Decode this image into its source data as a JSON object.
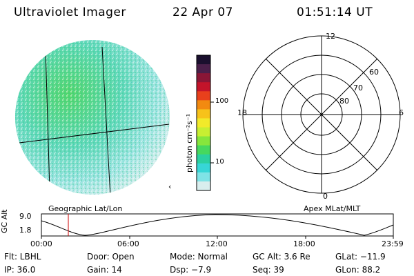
{
  "header": {
    "instrument": "Ultraviolet Imager",
    "date": "22 Apr 07",
    "time": "01:51:14 UT"
  },
  "colorbar": {
    "unit_label": "photon cm⁻²s⁻¹",
    "ticks": [
      "100",
      "10"
    ],
    "colors": [
      "#1a0f2e",
      "#4a1f4a",
      "#8a1636",
      "#c4142a",
      "#e8401c",
      "#f28a10",
      "#f7c21a",
      "#f2ea2a",
      "#c8ef32",
      "#86e63c",
      "#46d85e",
      "#2bd0a0",
      "#37d6d6",
      "#7fe3e6",
      "#d9eeee"
    ]
  },
  "labels": {
    "geo": "Geographic Lat/Lon",
    "apex": "Apex MLat/MLT"
  },
  "polar": {
    "mlt_top": "12",
    "mlt_left": "18",
    "mlt_right": "6",
    "mlt_bottom": "0",
    "lat_60": "60",
    "lat_70": "70",
    "lat_80": "80"
  },
  "altitude_plot": {
    "ylabel": "GC Alt",
    "y_ticks": [
      "9.0",
      "1.8"
    ],
    "x_ticks": [
      "00:00",
      "06:00",
      "12:00",
      "18:00",
      "23:59"
    ],
    "current_time_color": "#cc0000"
  },
  "info": {
    "flt": "Flt: LBHL",
    "door": "Door: Open",
    "mode": "Mode: Normal",
    "gcalt": "GC Alt: 3.6 Re",
    "glat": "GLat: −11.9",
    "ip": "IP: 36.0",
    "gain": "Gain: 14",
    "dsp": "Dsp:   −7.9",
    "seq": "Seq: 39",
    "glon": "GLon:  88.2"
  }
}
